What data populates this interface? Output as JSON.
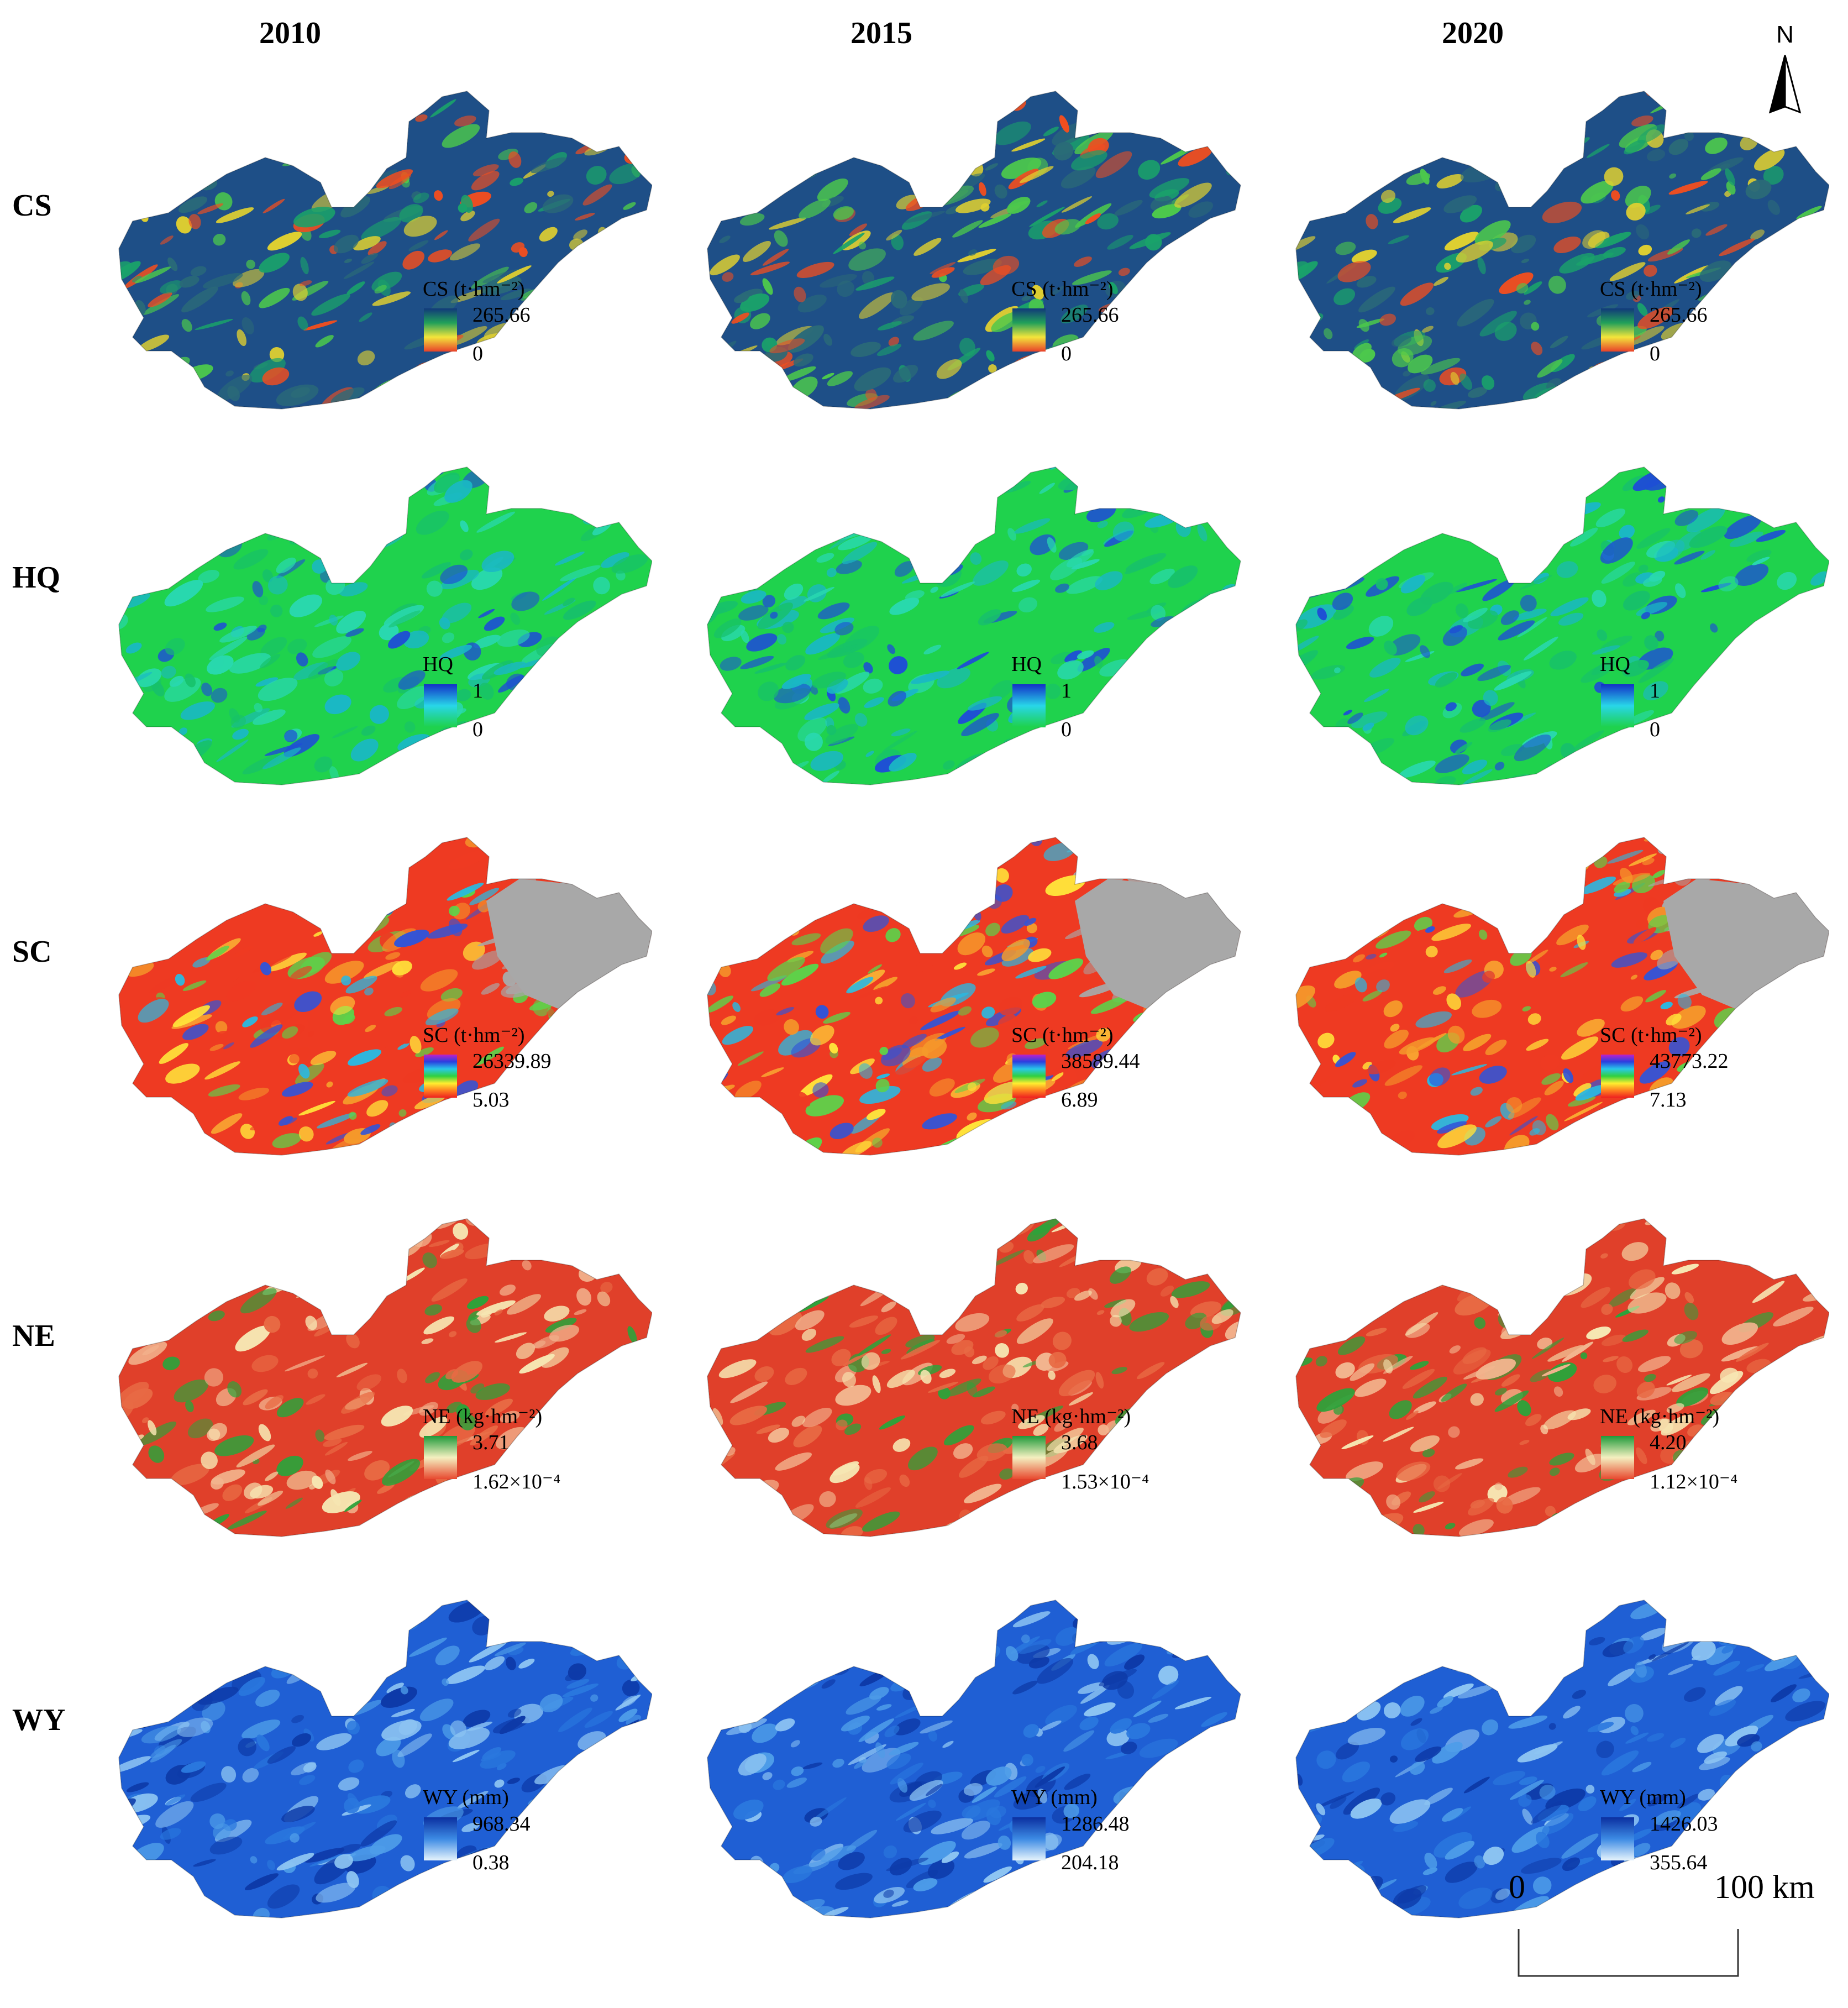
{
  "years": [
    "2010",
    "2015",
    "2020"
  ],
  "north_label": "N",
  "scale": {
    "start": "0",
    "end": "100 km"
  },
  "rows": [
    {
      "key": "CS",
      "label": "CS",
      "colors": [
        "#1e4f87",
        "#2a6a78",
        "#1aa26a",
        "#4cc84c",
        "#e0d030",
        "#ef4e20"
      ],
      "legend_gradient": [
        "#11387a",
        "#21a05a",
        "#f3e53b",
        "#e8412a"
      ],
      "panels": [
        {
          "title": "CS (t·hm⁻²)",
          "max": "265.66",
          "min": "0"
        },
        {
          "title": "CS (t·hm⁻²)",
          "max": "265.66",
          "min": "0"
        },
        {
          "title": "CS (t·hm⁻²)",
          "max": "265.66",
          "min": "0"
        }
      ]
    },
    {
      "key": "HQ",
      "label": "HQ",
      "colors": [
        "#1fd24d",
        "#17c16a",
        "#29d8b0",
        "#1ab8c4",
        "#1e4fd4"
      ],
      "legend_gradient": [
        "#1230c8",
        "#28d6e8",
        "#1ed24a"
      ],
      "panels": [
        {
          "title": "HQ",
          "max": "1",
          "min": "0"
        },
        {
          "title": "HQ",
          "max": "1",
          "min": "0"
        },
        {
          "title": "HQ",
          "max": "1",
          "min": "0"
        }
      ]
    },
    {
      "key": "SC",
      "label": "SC",
      "colors": [
        "#ee3a22",
        "#f59a2b",
        "#ffe13a",
        "#5cd34a",
        "#2bb8e0",
        "#3154d8",
        "#a8a8a8"
      ],
      "legend_gradient": [
        "#c020c8",
        "#2a40e0",
        "#28c8e8",
        "#30d040",
        "#ffee30",
        "#ff8020",
        "#ee2020"
      ],
      "panels": [
        {
          "title": "SC (t·hm⁻²)",
          "max": "26339.89",
          "min": "5.03"
        },
        {
          "title": "SC (t·hm⁻²)",
          "max": "38589.44",
          "min": "6.89"
        },
        {
          "title": "SC (t·hm⁻²)",
          "max": "43773.22",
          "min": "7.13"
        }
      ]
    },
    {
      "key": "NE",
      "label": "NE",
      "colors": [
        "#e0402a",
        "#e86a44",
        "#f2b48e",
        "#f6e6b2",
        "#2da23a"
      ],
      "legend_gradient": [
        "#1e9a3a",
        "#f4f0c0",
        "#e84a30"
      ],
      "panels": [
        {
          "title": "NE (kg·hm⁻²)",
          "max": "3.71",
          "min": "1.62×10⁻⁴"
        },
        {
          "title": "NE (kg·hm⁻²)",
          "max": "3.68",
          "min": "1.53×10⁻⁴"
        },
        {
          "title": "NE (kg·hm⁻²)",
          "max": "4.20",
          "min": "1.12×10⁻⁴"
        }
      ]
    },
    {
      "key": "WY",
      "label": "WY",
      "colors": [
        "#1f5fd4",
        "#2a78de",
        "#4d9ce8",
        "#8dc4f2",
        "#0d3aa8"
      ],
      "legend_gradient": [
        "#0b2fa0",
        "#3c8ae4",
        "#e6f4fc"
      ],
      "panels": [
        {
          "title": "WY (mm)",
          "max": "968.34",
          "min": "0.38"
        },
        {
          "title": "WY (mm)",
          "max": "1286.48",
          "min": "204.18"
        },
        {
          "title": "WY (mm)",
          "max": "1426.03",
          "min": "355.64"
        }
      ]
    }
  ]
}
